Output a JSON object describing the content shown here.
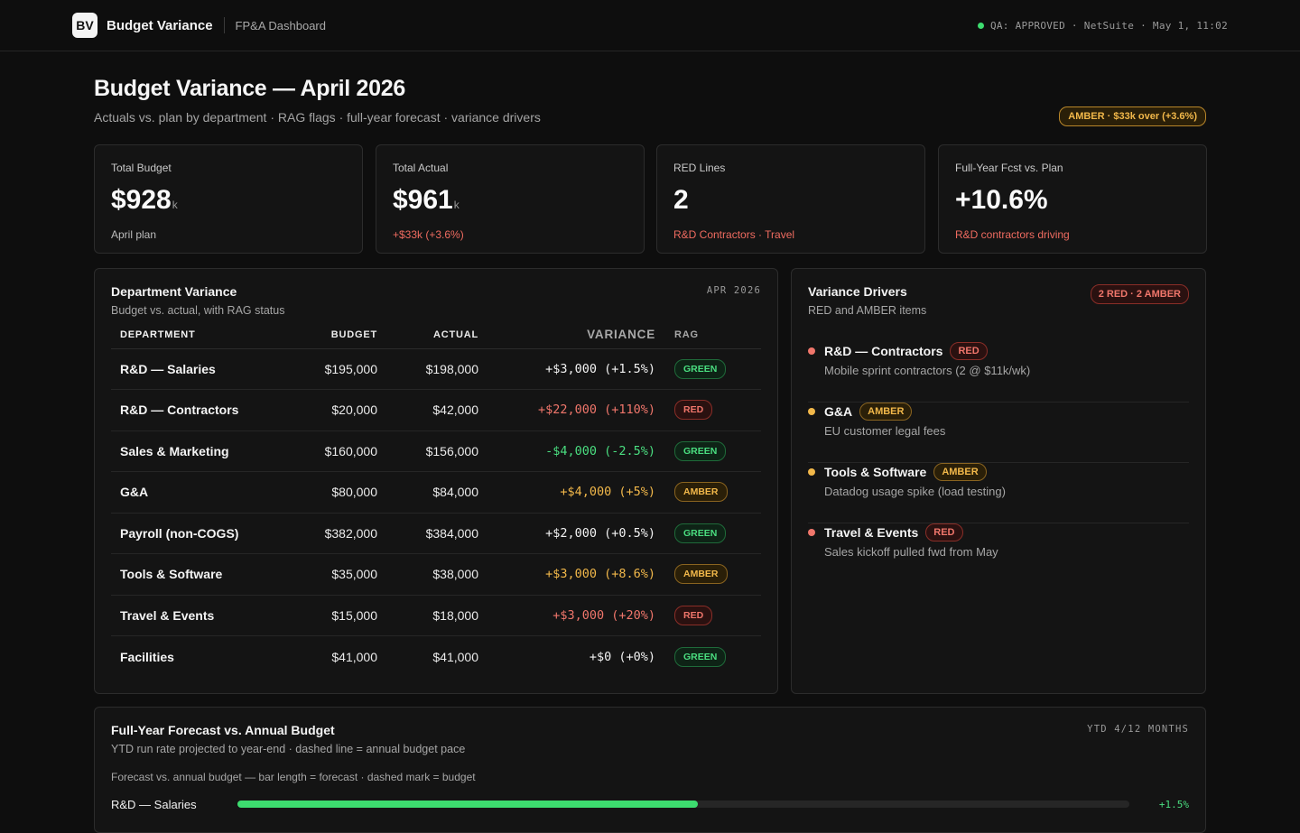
{
  "topbar": {
    "logo": "BV",
    "title": "Budget Variance",
    "subtitle": "FP&A Dashboard",
    "status": "QA: APPROVED · NetSuite · May 1, 11:02",
    "status_color": "#3ddc6f"
  },
  "header": {
    "title": "Budget Variance — April 2026",
    "subtitle": "Actuals vs. plan by department · RAG flags · full-year forecast · variance drivers",
    "badge": "AMBER · $33k over (+3.6%)"
  },
  "kpis": [
    {
      "label": "Total Budget",
      "value": "$928",
      "unit": "k",
      "foot": "April plan"
    },
    {
      "label": "Total Actual",
      "value": "$961",
      "unit": "k",
      "foot": "+$33k (+3.6%)"
    },
    {
      "label": "RED Lines",
      "value": "2",
      "unit": "",
      "foot": "R&D Contractors · Travel"
    },
    {
      "label": "Full-Year Fcst vs. Plan",
      "value": "+10.6%",
      "unit": "",
      "foot": "R&D contractors driving"
    }
  ],
  "dept": {
    "title": "Department Variance",
    "subtitle": "Budget vs. actual, with RAG status",
    "tag": "APR 2026",
    "columns": [
      "DEPARTMENT",
      "BUDGET",
      "ACTUAL",
      "VARIANCE",
      "RAG"
    ],
    "rows": [
      {
        "dept": "R&D — Salaries",
        "budget": "$195,000",
        "actual": "$198,000",
        "variance": "+$3,000 (+1.5%)",
        "rag": "GREEN",
        "tone": "pos"
      },
      {
        "dept": "R&D — Contractors",
        "budget": "$20,000",
        "actual": "$42,000",
        "variance": "+$22,000 (+110%)",
        "rag": "RED",
        "tone": "red"
      },
      {
        "dept": "Sales & Marketing",
        "budget": "$160,000",
        "actual": "$156,000",
        "variance": "-$4,000 (-2.5%)",
        "rag": "GREEN",
        "tone": "green"
      },
      {
        "dept": "G&A",
        "budget": "$80,000",
        "actual": "$84,000",
        "variance": "+$4,000 (+5%)",
        "rag": "AMBER",
        "tone": "amber"
      },
      {
        "dept": "Payroll (non-COGS)",
        "budget": "$382,000",
        "actual": "$384,000",
        "variance": "+$2,000 (+0.5%)",
        "rag": "GREEN",
        "tone": "pos"
      },
      {
        "dept": "Tools & Software",
        "budget": "$35,000",
        "actual": "$38,000",
        "variance": "+$3,000 (+8.6%)",
        "rag": "AMBER",
        "tone": "amber"
      },
      {
        "dept": "Travel & Events",
        "budget": "$15,000",
        "actual": "$18,000",
        "variance": "+$3,000 (+20%)",
        "rag": "RED",
        "tone": "red"
      },
      {
        "dept": "Facilities",
        "budget": "$41,000",
        "actual": "$41,000",
        "variance": "+$0 (+0%)",
        "rag": "GREEN",
        "tone": "pos"
      }
    ]
  },
  "drivers": {
    "title": "Variance Drivers",
    "subtitle": "RED and AMBER items",
    "badge": "2 RED · 2 AMBER",
    "items": [
      {
        "name": "R&D — Contractors",
        "rag": "RED",
        "note": "Mobile sprint contractors (2 @ $11k/wk)",
        "dot": "#f0766b"
      },
      {
        "name": "G&A",
        "rag": "AMBER",
        "note": "EU customer legal fees",
        "dot": "#f2b84a"
      },
      {
        "name": "Tools & Software",
        "rag": "AMBER",
        "note": "Datadog usage spike (load testing)",
        "dot": "#f2b84a"
      },
      {
        "name": "Travel & Events",
        "rag": "RED",
        "note": "Sales kickoff pulled fwd from May",
        "dot": "#f0766b"
      }
    ]
  },
  "forecast": {
    "title": "Full-Year Forecast vs. Annual Budget",
    "subtitle": "YTD run rate projected to year-end · dashed line = annual budget pace",
    "tag": "YTD 4/12 MONTHS",
    "caption": "Forecast vs. annual budget — bar length = forecast · dashed mark = budget",
    "rows": [
      {
        "label": "R&D — Salaries",
        "fill": 0.516,
        "value": "+1.5%",
        "color": "#3ddc6f"
      }
    ]
  }
}
